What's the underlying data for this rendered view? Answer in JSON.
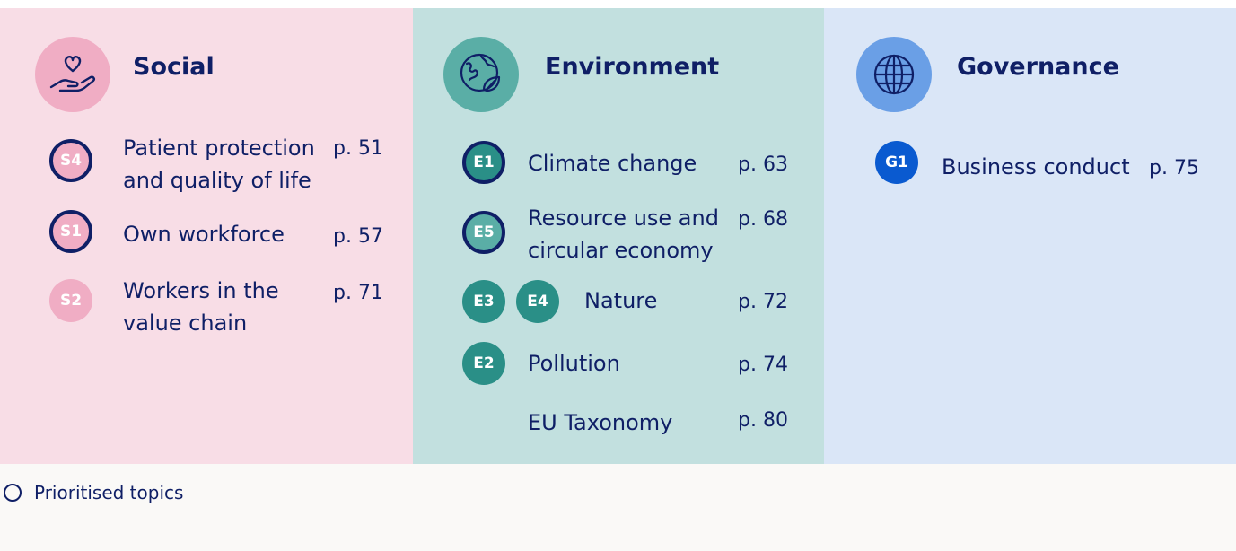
{
  "colors": {
    "navy": "#0f1f66",
    "social_bg": "#f8dde6",
    "social_accent": "#f0adc4",
    "env_bg": "#c2e0df",
    "env_header": "#5aaea6",
    "env_badge": "#2a8f87",
    "gov_bg": "#dae6f7",
    "gov_header": "#6a9fe6",
    "gov_badge": "#0a5ad0"
  },
  "social": {
    "title": "Social",
    "icon": "heart-in-hand-icon",
    "topics": [
      {
        "code": "S4",
        "label_line1": "Patient protection",
        "label_line2": "and quality of life",
        "page": "p. 51",
        "prioritised": true
      },
      {
        "code": "S1",
        "label_line1": "Own workforce",
        "label_line2": "",
        "page": "p. 57",
        "prioritised": true
      },
      {
        "code": "S2",
        "label_line1": "Workers in the",
        "label_line2": "value chain",
        "page": "p. 71",
        "prioritised": false
      }
    ]
  },
  "environment": {
    "title": "Environment",
    "icon": "earth-leaf-icon",
    "topics": [
      {
        "code": "E1",
        "label_line1": "Climate change",
        "label_line2": "",
        "page": "p. 63",
        "prioritised": true
      },
      {
        "code": "E5",
        "label_line1": "Resource use and",
        "label_line2": "circular economy",
        "page": "p. 68",
        "prioritised": true
      },
      {
        "code": "E3",
        "code2": "E4",
        "label_line1": "Nature",
        "label_line2": "",
        "page": "p. 72",
        "prioritised": false
      },
      {
        "code": "E2",
        "label_line1": "Pollution",
        "label_line2": "",
        "page": "p. 74",
        "prioritised": false
      },
      {
        "code": "",
        "label_line1": "EU Taxonomy",
        "label_line2": "",
        "page": "p. 80",
        "prioritised": false
      }
    ]
  },
  "governance": {
    "title": "Governance",
    "icon": "globe-icon",
    "topics": [
      {
        "code": "G1",
        "label_line1": "Business conduct",
        "label_line2": "",
        "page": "p. 75",
        "prioritised": false
      }
    ]
  },
  "legend": {
    "label": "Prioritised topics",
    "icon": "outline-circle-icon"
  }
}
